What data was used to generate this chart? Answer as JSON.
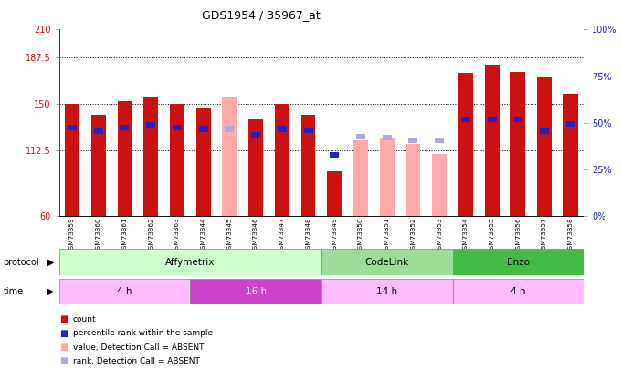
{
  "title": "GDS1954 / 35967_at",
  "samples": [
    "GSM73359",
    "GSM73360",
    "GSM73361",
    "GSM73362",
    "GSM73363",
    "GSM73344",
    "GSM73345",
    "GSM73346",
    "GSM73347",
    "GSM73348",
    "GSM73349",
    "GSM73350",
    "GSM73351",
    "GSM73352",
    "GSM73353",
    "GSM73354",
    "GSM73355",
    "GSM73356",
    "GSM73357",
    "GSM73358"
  ],
  "count_values": [
    150,
    141,
    152,
    156,
    150,
    147,
    null,
    138,
    150,
    141,
    96,
    null,
    null,
    null,
    null,
    175,
    182,
    176,
    172,
    158
  ],
  "count_absent": [
    null,
    null,
    null,
    null,
    null,
    null,
    156,
    null,
    null,
    null,
    null,
    121,
    122,
    118,
    110,
    null,
    null,
    null,
    null,
    null
  ],
  "percentile_values": [
    131,
    128,
    131,
    133,
    131,
    130,
    null,
    125,
    130,
    129,
    null,
    null,
    null,
    null,
    null,
    138,
    138,
    138,
    128,
    134
  ],
  "percentile_absent": [
    null,
    null,
    null,
    null,
    null,
    null,
    130,
    null,
    null,
    null,
    109,
    null,
    null,
    null,
    null,
    null,
    null,
    null,
    null,
    null
  ],
  "rank_absent": [
    null,
    null,
    null,
    null,
    null,
    null,
    130,
    null,
    null,
    null,
    null,
    124,
    123,
    121,
    121,
    null,
    null,
    null,
    null,
    null
  ],
  "ylim": [
    60,
    210
  ],
  "yticks_left": [
    60,
    112.5,
    150,
    187.5,
    210
  ],
  "yticks_right": [
    0,
    25,
    50,
    75,
    100
  ],
  "count_color": "#cc1111",
  "count_absent_color": "#ffaaaa",
  "percentile_color": "#2222cc",
  "rank_absent_color": "#aaaadd",
  "bg_color": "#ffffff",
  "proto_groups": [
    {
      "label": "Affymetrix",
      "start": 0,
      "end": 9,
      "color": "#ccffcc"
    },
    {
      "label": "CodeLink",
      "start": 10,
      "end": 14,
      "color": "#99dd99"
    },
    {
      "label": "Enzo",
      "start": 15,
      "end": 19,
      "color": "#44bb44"
    }
  ],
  "time_groups": [
    {
      "label": "4 h",
      "start": 0,
      "end": 4,
      "color": "#ffbbff"
    },
    {
      "label": "16 h",
      "start": 5,
      "end": 9,
      "color": "#cc44cc"
    },
    {
      "label": "14 h",
      "start": 10,
      "end": 14,
      "color": "#ffbbff"
    },
    {
      "label": "4 h",
      "start": 15,
      "end": 19,
      "color": "#ffbbff"
    }
  ],
  "legend_items": [
    {
      "label": "count",
      "color": "#cc1111"
    },
    {
      "label": "percentile rank within the sample",
      "color": "#2222cc"
    },
    {
      "label": "value, Detection Call = ABSENT",
      "color": "#ffaaaa"
    },
    {
      "label": "rank, Detection Call = ABSENT",
      "color": "#aaaadd"
    }
  ]
}
